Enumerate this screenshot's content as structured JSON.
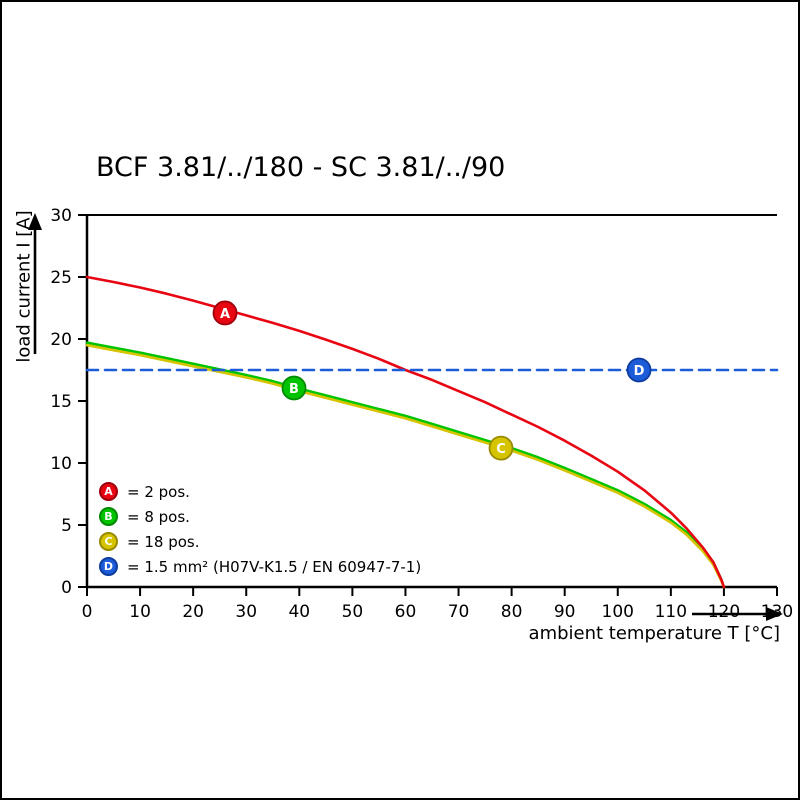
{
  "chart_data": {
    "type": "line",
    "title": "BCF 3.81/../180 - SC 3.81/../90",
    "xlabel": "ambient temperature T [°C]",
    "ylabel": "load current I [A]",
    "xlim": [
      0,
      130
    ],
    "ylim": [
      0,
      30
    ],
    "xticks": [
      0,
      10,
      20,
      30,
      40,
      50,
      60,
      70,
      80,
      90,
      100,
      110,
      120,
      130
    ],
    "yticks": [
      0,
      5,
      10,
      15,
      20,
      25,
      30
    ],
    "grid": false,
    "legend_position": "lower-left-inside",
    "series": [
      {
        "key": "B",
        "name": "8 pos.",
        "color": "#00c400",
        "edge": "#008a00",
        "dashed": false,
        "points": [
          [
            0,
            19.7
          ],
          [
            5,
            19.3
          ],
          [
            10,
            18.9
          ],
          [
            15,
            18.45
          ],
          [
            20,
            18.0
          ],
          [
            25,
            17.55
          ],
          [
            30,
            17.1
          ],
          [
            35,
            16.6
          ],
          [
            40,
            16.0
          ],
          [
            45,
            15.45
          ],
          [
            50,
            14.9
          ],
          [
            55,
            14.35
          ],
          [
            60,
            13.8
          ],
          [
            65,
            13.15
          ],
          [
            70,
            12.5
          ],
          [
            75,
            11.85
          ],
          [
            80,
            11.2
          ],
          [
            85,
            10.45
          ],
          [
            90,
            9.6
          ],
          [
            95,
            8.7
          ],
          [
            100,
            7.8
          ],
          [
            105,
            6.7
          ],
          [
            110,
            5.4
          ],
          [
            113,
            4.4
          ],
          [
            116,
            3.1
          ],
          [
            118,
            2.0
          ],
          [
            119.5,
            0.6
          ],
          [
            120,
            0
          ]
        ]
      },
      {
        "key": "C",
        "name": "18 pos.",
        "color": "#d6c400",
        "edge": "#988a00",
        "dashed": false,
        "points": [
          [
            0,
            19.5
          ],
          [
            5,
            19.1
          ],
          [
            10,
            18.7
          ],
          [
            15,
            18.25
          ],
          [
            20,
            17.8
          ],
          [
            25,
            17.35
          ],
          [
            30,
            16.9
          ],
          [
            35,
            16.4
          ],
          [
            40,
            15.8
          ],
          [
            45,
            15.25
          ],
          [
            50,
            14.7
          ],
          [
            55,
            14.15
          ],
          [
            60,
            13.6
          ],
          [
            65,
            12.95
          ],
          [
            70,
            12.3
          ],
          [
            75,
            11.65
          ],
          [
            80,
            11.0
          ],
          [
            85,
            10.25
          ],
          [
            90,
            9.4
          ],
          [
            95,
            8.5
          ],
          [
            100,
            7.6
          ],
          [
            105,
            6.5
          ],
          [
            110,
            5.2
          ],
          [
            113,
            4.2
          ],
          [
            116,
            2.9
          ],
          [
            118,
            1.8
          ],
          [
            119.5,
            0.5
          ],
          [
            120,
            0
          ]
        ]
      },
      {
        "key": "A",
        "name": "2 pos.",
        "color": "#e80613",
        "edge": "#9e000c",
        "dashed": false,
        "points": [
          [
            0,
            25.0
          ],
          [
            5,
            24.6
          ],
          [
            10,
            24.15
          ],
          [
            15,
            23.65
          ],
          [
            20,
            23.1
          ],
          [
            25,
            22.5
          ],
          [
            30,
            21.9
          ],
          [
            35,
            21.3
          ],
          [
            40,
            20.65
          ],
          [
            45,
            19.95
          ],
          [
            50,
            19.2
          ],
          [
            55,
            18.4
          ],
          [
            60,
            17.5
          ],
          [
            65,
            16.7
          ],
          [
            70,
            15.8
          ],
          [
            75,
            14.9
          ],
          [
            80,
            13.9
          ],
          [
            85,
            12.9
          ],
          [
            90,
            11.8
          ],
          [
            95,
            10.6
          ],
          [
            100,
            9.3
          ],
          [
            105,
            7.8
          ],
          [
            110,
            6.0
          ],
          [
            113,
            4.7
          ],
          [
            116,
            3.2
          ],
          [
            118,
            2.0
          ],
          [
            119.5,
            0.6
          ],
          [
            120,
            0
          ]
        ]
      },
      {
        "key": "D",
        "name": "1.5 mm² (H07V-K1.5 / EN 60947-7-1)",
        "color": "#1c5cd8",
        "edge": "#0d3c9e",
        "dashed": true,
        "points": [
          [
            0,
            17.5
          ],
          [
            130,
            17.5
          ]
        ]
      }
    ],
    "markers": [
      {
        "key": "A",
        "x": 26,
        "y": 22.1
      },
      {
        "key": "B",
        "x": 39,
        "y": 16.05
      },
      {
        "key": "C",
        "x": 78,
        "y": 11.2
      },
      {
        "key": "D",
        "x": 104,
        "y": 17.5
      }
    ],
    "legend": [
      {
        "key": "A",
        "label": "= 2 pos."
      },
      {
        "key": "B",
        "label": "= 8 pos."
      },
      {
        "key": "C",
        "label": "= 18 pos."
      },
      {
        "key": "D",
        "label": "= 1.5 mm² (H07V-K1.5 / EN 60947-7-1)"
      }
    ]
  }
}
